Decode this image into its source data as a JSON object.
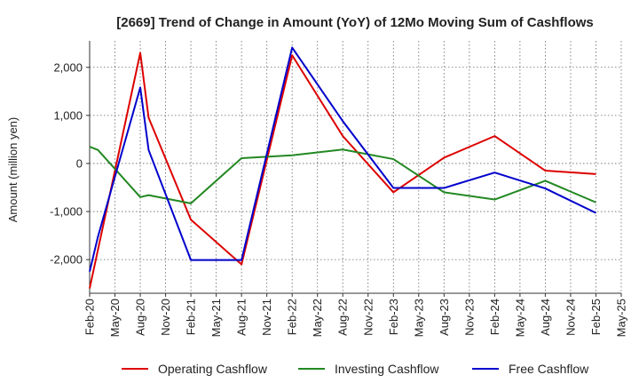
{
  "chart_data": {
    "type": "line",
    "title": "[2669]  Trend of Change in Amount (YoY) of 12Mo Moving Sum of Cashflows",
    "xlabel": "",
    "ylabel": "Amount (million yen)",
    "ylim": [
      -2700,
      2550
    ],
    "y_ticks": [
      {
        "value": -2000,
        "label": "-2,000"
      },
      {
        "value": -1000,
        "label": "-1,000"
      },
      {
        "value": 0,
        "label": "0"
      },
      {
        "value": 1000,
        "label": "1,000"
      },
      {
        "value": 2000,
        "label": "2,000"
      }
    ],
    "categories": [
      "Feb-20",
      "May-20",
      "Aug-20",
      "Nov-20",
      "Feb-21",
      "May-21",
      "Aug-21",
      "Nov-21",
      "Feb-22",
      "May-22",
      "Aug-22",
      "Nov-22",
      "Feb-23",
      "May-23",
      "Aug-23",
      "Nov-23",
      "Feb-24",
      "May-24",
      "Aug-24",
      "Nov-24",
      "Feb-25",
      "May-25"
    ],
    "grid": true,
    "legend_position": "bottom",
    "series": [
      {
        "name": "Operating Cashflow",
        "color": "#dd0000",
        "points": [
          {
            "x": 0,
            "y": -2600
          },
          {
            "x": 2,
            "y": 2300
          },
          {
            "x": 2.33,
            "y": 950
          },
          {
            "x": 4,
            "y": -1170
          },
          {
            "x": 6,
            "y": -2100
          },
          {
            "x": 8,
            "y": 2250
          },
          {
            "x": 10,
            "y": 570
          },
          {
            "x": 12,
            "y": -600
          },
          {
            "x": 14,
            "y": 120
          },
          {
            "x": 16,
            "y": 570
          },
          {
            "x": 18,
            "y": -150
          },
          {
            "x": 20,
            "y": -220
          }
        ]
      },
      {
        "name": "Investing Cashflow",
        "color": "#228822",
        "points": [
          {
            "x": 0,
            "y": 350
          },
          {
            "x": 0.33,
            "y": 280
          },
          {
            "x": 2,
            "y": -700
          },
          {
            "x": 2.33,
            "y": -660
          },
          {
            "x": 4,
            "y": -830
          },
          {
            "x": 6,
            "y": 110
          },
          {
            "x": 8,
            "y": 170
          },
          {
            "x": 10,
            "y": 290
          },
          {
            "x": 12,
            "y": 90
          },
          {
            "x": 14,
            "y": -600
          },
          {
            "x": 16,
            "y": -750
          },
          {
            "x": 18,
            "y": -360
          },
          {
            "x": 20,
            "y": -810
          }
        ]
      },
      {
        "name": "Free Cashflow",
        "color": "#0000cc",
        "points": [
          {
            "x": 0,
            "y": -2250
          },
          {
            "x": 0.33,
            "y": -1520
          },
          {
            "x": 2,
            "y": 1580
          },
          {
            "x": 2.33,
            "y": 280
          },
          {
            "x": 4,
            "y": -2010
          },
          {
            "x": 6,
            "y": -2010
          },
          {
            "x": 8,
            "y": 2410
          },
          {
            "x": 10,
            "y": 880
          },
          {
            "x": 12,
            "y": -510
          },
          {
            "x": 14,
            "y": -510
          },
          {
            "x": 16,
            "y": -190
          },
          {
            "x": 18,
            "y": -520
          },
          {
            "x": 20,
            "y": -1030
          }
        ]
      }
    ]
  }
}
